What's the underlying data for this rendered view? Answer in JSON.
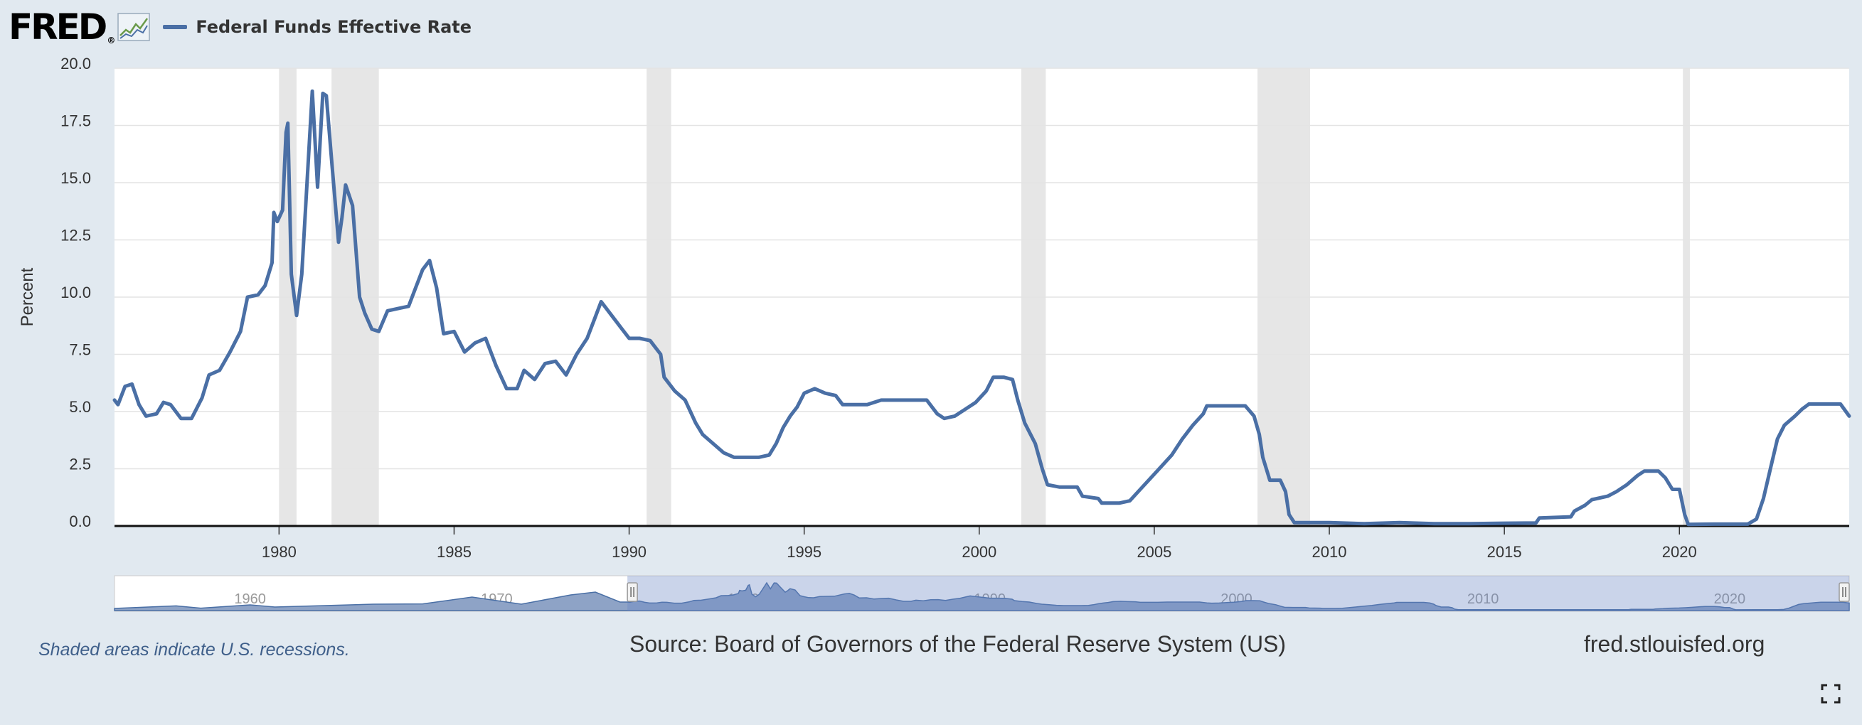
{
  "header": {
    "logo_text": "FRED",
    "logo_mark": "®",
    "legend_label": "Federal Funds Effective Rate",
    "legend_color": "#4a6fa5"
  },
  "footer": {
    "recession_note": "Shaded areas indicate U.S. recessions.",
    "source": "Source: Board of Governors of the Federal Reserve System (US)",
    "site": "fred.stlouisfed.org"
  },
  "icons": {
    "fullscreen": "fullscreen-icon",
    "logo_chart": "line-chart-icon"
  },
  "chart_data": {
    "type": "line",
    "title": "Federal Funds Effective Rate",
    "ylabel": "Percent",
    "xlabel": "",
    "xlim": [
      1975.3,
      2024.85
    ],
    "ylim": [
      0,
      20
    ],
    "y_ticks": [
      "0.0",
      "2.5",
      "5.0",
      "7.5",
      "10.0",
      "12.5",
      "15.0",
      "17.5",
      "20.0"
    ],
    "x_ticks": [
      "1980",
      "1985",
      "1990",
      "1995",
      "2000",
      "2005",
      "2010",
      "2015",
      "2020"
    ],
    "grid": true,
    "line_color": "#4a6fa5",
    "recession_shading": [
      [
        1980.0,
        1980.5
      ],
      [
        1981.5,
        1982.85
      ],
      [
        1990.5,
        1991.2
      ],
      [
        2001.2,
        2001.9
      ],
      [
        2007.95,
        2009.45
      ],
      [
        2020.1,
        2020.3
      ]
    ],
    "series": [
      {
        "name": "Federal Funds Effective Rate",
        "points": [
          [
            1975.3,
            5.5
          ],
          [
            1975.4,
            5.3
          ],
          [
            1975.6,
            6.1
          ],
          [
            1975.8,
            6.2
          ],
          [
            1976.0,
            5.3
          ],
          [
            1976.2,
            4.8
          ],
          [
            1976.5,
            4.9
          ],
          [
            1976.7,
            5.4
          ],
          [
            1976.9,
            5.3
          ],
          [
            1977.2,
            4.7
          ],
          [
            1977.5,
            4.7
          ],
          [
            1977.8,
            5.6
          ],
          [
            1978.0,
            6.6
          ],
          [
            1978.3,
            6.8
          ],
          [
            1978.6,
            7.6
          ],
          [
            1978.9,
            8.5
          ],
          [
            1979.1,
            10.0
          ],
          [
            1979.4,
            10.1
          ],
          [
            1979.6,
            10.5
          ],
          [
            1979.8,
            11.5
          ],
          [
            1979.85,
            13.7
          ],
          [
            1979.95,
            13.3
          ],
          [
            1980.1,
            13.8
          ],
          [
            1980.2,
            17.2
          ],
          [
            1980.25,
            17.6
          ],
          [
            1980.35,
            11.0
          ],
          [
            1980.5,
            9.2
          ],
          [
            1980.65,
            11.0
          ],
          [
            1980.8,
            15.0
          ],
          [
            1980.95,
            19.0
          ],
          [
            1981.1,
            14.8
          ],
          [
            1981.25,
            18.9
          ],
          [
            1981.35,
            18.8
          ],
          [
            1981.5,
            16.0
          ],
          [
            1981.7,
            12.4
          ],
          [
            1981.8,
            13.5
          ],
          [
            1981.9,
            14.9
          ],
          [
            1982.1,
            14.0
          ],
          [
            1982.3,
            10.0
          ],
          [
            1982.45,
            9.3
          ],
          [
            1982.65,
            8.6
          ],
          [
            1982.85,
            8.5
          ],
          [
            1983.1,
            9.4
          ],
          [
            1983.4,
            9.5
          ],
          [
            1983.7,
            9.6
          ],
          [
            1983.9,
            10.4
          ],
          [
            1984.1,
            11.2
          ],
          [
            1984.3,
            11.6
          ],
          [
            1984.5,
            10.4
          ],
          [
            1984.7,
            8.4
          ],
          [
            1985.0,
            8.5
          ],
          [
            1985.3,
            7.6
          ],
          [
            1985.6,
            8.0
          ],
          [
            1985.9,
            8.2
          ],
          [
            1986.2,
            7.0
          ],
          [
            1986.5,
            6.0
          ],
          [
            1986.8,
            6.0
          ],
          [
            1987.0,
            6.8
          ],
          [
            1987.3,
            6.4
          ],
          [
            1987.6,
            7.1
          ],
          [
            1987.9,
            7.2
          ],
          [
            1988.2,
            6.6
          ],
          [
            1988.5,
            7.5
          ],
          [
            1988.8,
            8.2
          ],
          [
            1989.0,
            9.0
          ],
          [
            1989.2,
            9.8
          ],
          [
            1989.5,
            9.2
          ],
          [
            1989.8,
            8.6
          ],
          [
            1990.0,
            8.2
          ],
          [
            1990.3,
            8.2
          ],
          [
            1990.6,
            8.1
          ],
          [
            1990.9,
            7.5
          ],
          [
            1991.0,
            6.5
          ],
          [
            1991.3,
            5.9
          ],
          [
            1991.6,
            5.5
          ],
          [
            1991.9,
            4.5
          ],
          [
            1992.1,
            4.0
          ],
          [
            1992.4,
            3.6
          ],
          [
            1992.7,
            3.2
          ],
          [
            1993.0,
            3.0
          ],
          [
            1993.3,
            3.0
          ],
          [
            1993.7,
            3.0
          ],
          [
            1994.0,
            3.1
          ],
          [
            1994.2,
            3.6
          ],
          [
            1994.4,
            4.3
          ],
          [
            1994.6,
            4.8
          ],
          [
            1994.8,
            5.2
          ],
          [
            1995.0,
            5.8
          ],
          [
            1995.3,
            6.0
          ],
          [
            1995.6,
            5.8
          ],
          [
            1995.9,
            5.7
          ],
          [
            1996.1,
            5.3
          ],
          [
            1996.4,
            5.3
          ],
          [
            1996.8,
            5.3
          ],
          [
            1997.2,
            5.5
          ],
          [
            1997.5,
            5.5
          ],
          [
            1997.9,
            5.5
          ],
          [
            1998.2,
            5.5
          ],
          [
            1998.5,
            5.5
          ],
          [
            1998.8,
            4.9
          ],
          [
            1999.0,
            4.7
          ],
          [
            1999.3,
            4.8
          ],
          [
            1999.6,
            5.1
          ],
          [
            1999.9,
            5.4
          ],
          [
            2000.2,
            5.9
          ],
          [
            2000.4,
            6.5
          ],
          [
            2000.7,
            6.5
          ],
          [
            2000.95,
            6.4
          ],
          [
            2001.1,
            5.5
          ],
          [
            2001.3,
            4.5
          ],
          [
            2001.6,
            3.6
          ],
          [
            2001.8,
            2.5
          ],
          [
            2001.95,
            1.8
          ],
          [
            2002.3,
            1.7
          ],
          [
            2002.8,
            1.7
          ],
          [
            2002.95,
            1.3
          ],
          [
            2003.4,
            1.2
          ],
          [
            2003.5,
            1.0
          ],
          [
            2004.0,
            1.0
          ],
          [
            2004.3,
            1.1
          ],
          [
            2004.6,
            1.6
          ],
          [
            2004.9,
            2.1
          ],
          [
            2005.2,
            2.6
          ],
          [
            2005.5,
            3.1
          ],
          [
            2005.8,
            3.8
          ],
          [
            2006.1,
            4.4
          ],
          [
            2006.4,
            4.9
          ],
          [
            2006.5,
            5.25
          ],
          [
            2007.0,
            5.25
          ],
          [
            2007.6,
            5.25
          ],
          [
            2007.85,
            4.8
          ],
          [
            2008.0,
            4.0
          ],
          [
            2008.1,
            3.0
          ],
          [
            2008.3,
            2.0
          ],
          [
            2008.6,
            2.0
          ],
          [
            2008.75,
            1.5
          ],
          [
            2008.85,
            0.5
          ],
          [
            2009.0,
            0.15
          ],
          [
            2009.5,
            0.15
          ],
          [
            2010.0,
            0.15
          ],
          [
            2011.0,
            0.1
          ],
          [
            2012.0,
            0.15
          ],
          [
            2013.0,
            0.1
          ],
          [
            2014.0,
            0.1
          ],
          [
            2015.0,
            0.12
          ],
          [
            2015.9,
            0.13
          ],
          [
            2016.0,
            0.35
          ],
          [
            2016.9,
            0.4
          ],
          [
            2017.0,
            0.65
          ],
          [
            2017.3,
            0.9
          ],
          [
            2017.5,
            1.15
          ],
          [
            2017.95,
            1.3
          ],
          [
            2018.2,
            1.5
          ],
          [
            2018.5,
            1.8
          ],
          [
            2018.8,
            2.2
          ],
          [
            2019.0,
            2.4
          ],
          [
            2019.4,
            2.4
          ],
          [
            2019.6,
            2.1
          ],
          [
            2019.8,
            1.6
          ],
          [
            2020.0,
            1.6
          ],
          [
            2020.15,
            0.5
          ],
          [
            2020.25,
            0.07
          ],
          [
            2021.0,
            0.08
          ],
          [
            2021.95,
            0.08
          ],
          [
            2022.2,
            0.3
          ],
          [
            2022.4,
            1.2
          ],
          [
            2022.6,
            2.5
          ],
          [
            2022.8,
            3.8
          ],
          [
            2023.0,
            4.4
          ],
          [
            2023.3,
            4.8
          ],
          [
            2023.5,
            5.1
          ],
          [
            2023.7,
            5.33
          ],
          [
            2024.6,
            5.33
          ],
          [
            2024.85,
            4.8
          ]
        ]
      }
    ],
    "navigator": {
      "x_ticks": [
        "1960",
        "1970",
        "1980",
        "1990",
        "2000",
        "2010",
        "2020"
      ],
      "full_range": [
        1954.5,
        2024.85
      ],
      "selected_range": [
        1975.3,
        2024.85
      ]
    }
  }
}
